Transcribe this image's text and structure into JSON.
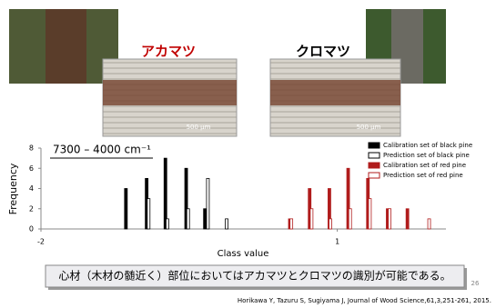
{
  "slide": {
    "red_pine_label": "アカマツ",
    "black_pine_label": "クロマツ",
    "scale_labels": [
      "500 μm",
      "500 μm"
    ],
    "caption": "心材（木材の髄近く）部位においてはアカマツとクロマツの識別が可能である。",
    "citation": "Horikawa Y, Tazuru S, Sugiyama J, Journal of Wood Science,61,3,251-261, 2015.",
    "page_number": "26"
  },
  "chart_data": {
    "type": "bar",
    "annotation": "7300 – 4000 cm⁻¹",
    "xlabel": "Class value",
    "ylabel": "Frequency",
    "xlim": [
      -2,
      2.1
    ],
    "ylim": [
      0,
      8
    ],
    "xticks": [
      -2,
      1
    ],
    "yticks": [
      0,
      2,
      4,
      6,
      8
    ],
    "legend": "upper right",
    "series": [
      {
        "name": "Calibration set of black pine",
        "color": "#000000",
        "fill": "#000000",
        "x": [
          -1.14,
          -0.93,
          -0.74,
          -0.53,
          -0.34
        ],
        "values": [
          4,
          5,
          7,
          6,
          2
        ]
      },
      {
        "name": "Prediction set of black pine",
        "color": "#000000",
        "fill": "#ffffff",
        "x": [
          -0.91,
          -0.72,
          -0.51,
          -0.31,
          -0.12
        ],
        "values": [
          3,
          1,
          2,
          5,
          1
        ]
      },
      {
        "name": "Calibration set of red pine",
        "color": "#b01c1c",
        "fill": "#b01c1c",
        "x": [
          0.52,
          0.72,
          0.92,
          1.11,
          1.31,
          1.51,
          1.71
        ],
        "values": [
          1,
          4,
          4,
          6,
          5,
          2,
          2
        ]
      },
      {
        "name": "Prediction set of red pine",
        "color": "#b01c1c",
        "fill": "#ffffff",
        "x": [
          0.535,
          0.74,
          0.93,
          1.13,
          1.33,
          1.53,
          1.93
        ],
        "values": [
          1,
          2,
          1,
          2,
          3,
          2,
          1
        ]
      }
    ]
  }
}
